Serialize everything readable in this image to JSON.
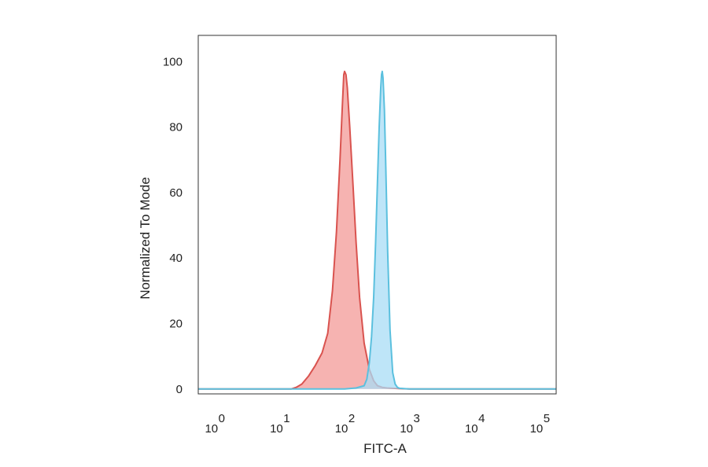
{
  "chart_data": {
    "type": "area",
    "title": "",
    "xlabel": "FITC-A",
    "ylabel": "Normalized To Mode",
    "x_scale": "log",
    "xlim": [
      0.56,
      180000
    ],
    "ylim": [
      -1.5,
      108
    ],
    "x_ticks": [
      {
        "base": "10",
        "exp": "0",
        "value": 1
      },
      {
        "base": "10",
        "exp": "1",
        "value": 10
      },
      {
        "base": "10",
        "exp": "2",
        "value": 100
      },
      {
        "base": "10",
        "exp": "3",
        "value": 1000
      },
      {
        "base": "10",
        "exp": "4",
        "value": 10000
      },
      {
        "base": "10",
        "exp": "5",
        "value": 100000
      }
    ],
    "y_ticks": [
      {
        "label": "0",
        "value": 0
      },
      {
        "label": "20",
        "value": 20
      },
      {
        "label": "40",
        "value": 40
      },
      {
        "label": "60",
        "value": 60
      },
      {
        "label": "80",
        "value": 80
      },
      {
        "label": "100",
        "value": 100
      }
    ],
    "grid": false,
    "series": [
      {
        "color": "#d9534f",
        "fill": "#f4a6a3",
        "x": [
          0.56,
          15,
          18,
          22,
          28,
          35,
          45,
          55,
          65,
          75,
          85,
          92,
          97,
          100,
          105,
          110,
          120,
          135,
          150,
          170,
          200,
          240,
          280,
          320,
          380,
          450,
          550,
          700,
          1000,
          10000,
          180000
        ],
        "y": [
          0,
          0,
          0.5,
          1.5,
          4,
          7,
          11,
          17,
          30,
          48,
          70,
          86,
          96,
          97,
          96,
          92,
          80,
          62,
          45,
          28,
          14,
          6,
          2.5,
          1,
          0.5,
          0.3,
          0.2,
          0.1,
          0,
          0,
          0
        ]
      },
      {
        "color": "#5bc0de",
        "fill": "#a8dcf5",
        "x": [
          0.56,
          100,
          150,
          200,
          220,
          240,
          260,
          280,
          300,
          320,
          340,
          360,
          370,
          380,
          390,
          410,
          430,
          460,
          500,
          550,
          600,
          650,
          700,
          800,
          1000,
          10000,
          180000
        ],
        "y": [
          0,
          0,
          0.3,
          1,
          3,
          8,
          16,
          28,
          45,
          63,
          80,
          92,
          96,
          97,
          95,
          85,
          68,
          42,
          18,
          5,
          1.5,
          0.5,
          0.2,
          0.1,
          0,
          0,
          0
        ]
      }
    ]
  }
}
